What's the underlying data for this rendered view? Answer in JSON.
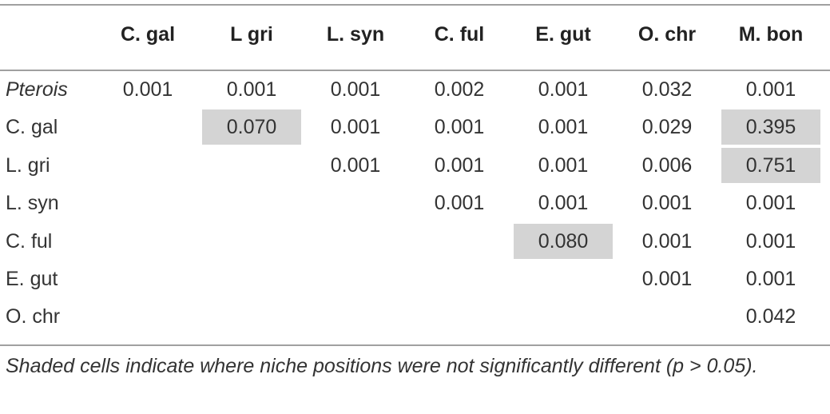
{
  "table": {
    "header": [
      "C. gal",
      "L gri",
      "L. syn",
      "C. ful",
      "E. gut",
      "O. chr",
      "M. bon"
    ],
    "rows": [
      {
        "label": "Pterois",
        "italic": true,
        "cells": [
          {
            "text": "0.001"
          },
          {
            "text": "0.001"
          },
          {
            "text": "0.001"
          },
          {
            "text": "0.002"
          },
          {
            "text": "0.001"
          },
          {
            "text": "0.032"
          },
          {
            "text": "0.001"
          }
        ]
      },
      {
        "label": "C. gal",
        "cells": [
          {
            "text": "0.070",
            "shaded": true
          },
          {
            "text": "0.001"
          },
          {
            "text": "0.001"
          },
          {
            "text": "0.001"
          },
          {
            "text": "0.029"
          },
          {
            "text": "0.395",
            "shaded": true
          }
        ]
      },
      {
        "label": "L. gri",
        "cells": [
          {
            "text": "0.001"
          },
          {
            "text": "0.001"
          },
          {
            "text": "0.001"
          },
          {
            "text": "0.006"
          },
          {
            "text": "0.751",
            "shaded": true
          }
        ]
      },
      {
        "label": "L. syn",
        "cells": [
          {
            "text": "0.001"
          },
          {
            "text": "0.001"
          },
          {
            "text": "0.001"
          },
          {
            "text": "0.001"
          }
        ]
      },
      {
        "label": "C. ful",
        "cells": [
          {
            "text": "0.080",
            "shaded": true
          },
          {
            "text": "0.001"
          },
          {
            "text": "0.001"
          }
        ]
      },
      {
        "label": "E. gut",
        "cells": [
          {
            "text": "0.001"
          },
          {
            "text": "0.001"
          }
        ]
      },
      {
        "label": "O. chr",
        "cells": [
          {
            "text": "0.042"
          }
        ]
      }
    ],
    "footnote": "Shaded cells indicate where niche positions were not significantly different (p > 0.05)."
  }
}
